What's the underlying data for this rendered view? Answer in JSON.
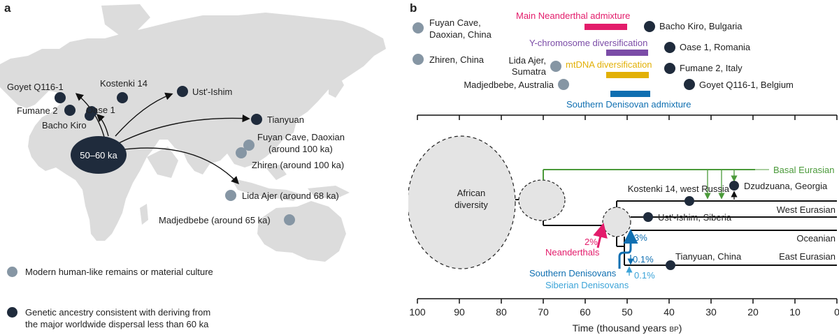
{
  "panel_a": {
    "letter": "a",
    "origin_label": "50–60 ka",
    "sites": {
      "goyet": "Goyet Q116-1",
      "kostenki": "Kostenki 14",
      "fumane": "Fumane 2",
      "oase": "Oase 1",
      "bacho": "Bacho Kiro",
      "ustishim": "Ust'-Ishim",
      "tianyuan": "Tianyuan",
      "fuyan_1": "Fuyan Cave, Daoxian",
      "fuyan_2": "(around 100 ka)",
      "zhiren": "Zhiren (around 100 ka)",
      "lida": "Lida Ajer (around 68 ka)",
      "madjedbebe": "Madjedbebe (around 65 ka)"
    },
    "legend": {
      "item1": "Modern human-like remains or material culture",
      "item2_line1": "Genetic ancestry consistent with deriving from",
      "item2_line2": "the major worldwide dispersal less than 60 ka"
    }
  },
  "panel_b": {
    "letter": "b",
    "top_left_sites": {
      "fuyan_1": "Fuyan Cave,",
      "fuyan_2": "Daoxian, China",
      "zhiren": "Zhiren, China",
      "lida_1": "Lida Ajer,",
      "lida_2": "Sumatra",
      "madjedbebe": "Madjedbebe, Australia"
    },
    "top_right_sites": {
      "bacho": "Bacho Kiro, Bulgaria",
      "oase": "Oase 1, Romania",
      "fumane": "Fumane 2, Italy",
      "goyet": "Goyet Q116-1, Belgium"
    },
    "events": {
      "neanderthal": "Main Neanderthal admixture",
      "ychrom": "Y-chromosome diversification",
      "mtdna": "mtDNA diversification",
      "denisovan": "Southern Denisovan admixture"
    },
    "tree": {
      "african": "African",
      "diversity": "diversity",
      "basal": "Basal Eurasian",
      "kostenki": "Kostenki 14, west Russia",
      "dzudzuana": "Dzudzuana, Georgia",
      "west": "West Eurasian",
      "ustishim": "Ust'-Ishim, Siberia",
      "oceanian": "Oceanian",
      "tianyuan": "Tianyuan, China",
      "east": "East Eurasian",
      "pct_nean": "2%",
      "neanderthals": "Neanderthals",
      "pct_3": "3%",
      "pct_01a": "0.1%",
      "pct_01b": "0.1%",
      "southern": "Southern Denisovans",
      "siberian": "Siberian Denisovans"
    },
    "axis": {
      "ticks": [
        "100",
        "90",
        "80",
        "70",
        "60",
        "50",
        "40",
        "30",
        "20",
        "10",
        "0"
      ],
      "title": "Time (thousand years",
      "unit": "BP",
      "close": ")"
    }
  },
  "colors": {
    "dark_dot": "#1f2b3c",
    "grey_dot": "#8696a4",
    "map_land": "#dcdcdc",
    "neanderthal": "#e31c6b",
    "ychrom": "#7b4ca7",
    "mtdna": "#e2b006",
    "denisovan": "#0f6fb1",
    "siberian": "#3da4d8",
    "basal": "#4b9a3a"
  }
}
